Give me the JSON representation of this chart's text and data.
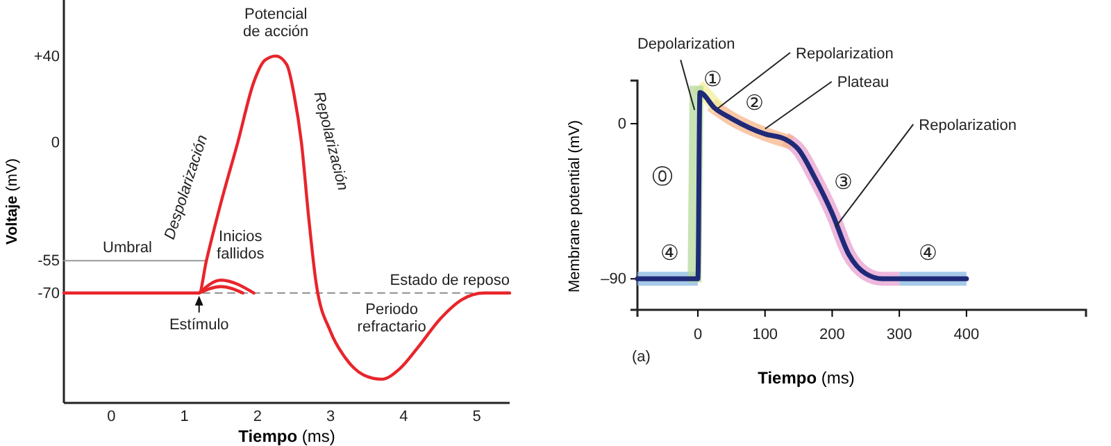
{
  "chart_data": [
    {
      "type": "line",
      "xlabel": "Tiempo (ms)",
      "ylabel": "Voltaje (mV)",
      "xlim": [
        -0.65,
        5.45
      ],
      "ylim": [
        -121,
        66
      ],
      "xticks": [
        0,
        1,
        2,
        3,
        4,
        5
      ],
      "yticks": [
        {
          "value": 40,
          "label": "+40"
        },
        0,
        -55,
        -70
      ],
      "series": [
        {
          "color": "#e8252b",
          "x": [
            -0.65,
            1.2,
            1.3,
            1.5,
            1.73,
            1.95,
            2.1,
            2.25,
            2.4,
            2.5,
            2.6,
            2.7,
            2.8,
            3.0,
            3.2,
            3.45,
            3.7,
            3.95,
            4.2,
            4.5,
            4.8,
            5.1,
            5.45
          ],
          "values": [
            -70,
            -70,
            -55,
            -28,
            0,
            28,
            38,
            40,
            36,
            22,
            0,
            -35,
            -65,
            -88,
            -100,
            -108,
            -110,
            -105,
            -95,
            -82,
            -73,
            -70,
            -70
          ]
        },
        {
          "color": "#e8252b",
          "x": [
            1.2,
            1.5,
            1.95
          ],
          "values": [
            -70,
            -64,
            -70
          ]
        },
        {
          "color": "#e8252b",
          "x": [
            1.2,
            1.5,
            1.8
          ],
          "values": [
            -70,
            -67,
            -70
          ]
        },
        {
          "name": "Umbral",
          "color": "#999999",
          "x": [
            -0.65,
            1.3
          ],
          "values": [
            -55,
            -55
          ]
        },
        {
          "name": "Estado de reposo",
          "color": "#8c8c8c",
          "line_style": "dashed",
          "x": [
            1.25,
            5.45
          ],
          "values": [
            -70,
            -70
          ]
        }
      ],
      "annotations": [
        {
          "text": "Potencial de acción",
          "x": 2.25,
          "y": 40
        },
        {
          "text": "Despolarización",
          "x": 1.5,
          "y": -28
        },
        {
          "text": "Repolarización",
          "x": 2.6,
          "y": 0
        },
        {
          "text": "Inicios fallidos",
          "x": 1.5,
          "y": -64
        },
        {
          "text": "Estímulo",
          "x": 1.2,
          "y": -70
        },
        {
          "text": "Periodo refractario",
          "x": 3.0,
          "y": -88
        }
      ]
    },
    {
      "type": "line",
      "xlabel": "Tiempo (ms)",
      "ylabel": "Membrane potential (mV)",
      "xlim": [
        -90,
        578
      ],
      "ylim": [
        -108,
        25
      ],
      "xticks": [
        0,
        100,
        200,
        300,
        400
      ],
      "yticks": [
        0,
        {
          "value": -90,
          "label": "–90"
        }
      ],
      "series": [
        {
          "color": "#1f2a78",
          "x": [
            -90,
            0,
            3,
            25,
            50,
            100,
            130,
            150,
            175,
            200,
            225,
            250,
            275,
            400
          ],
          "values": [
            -90,
            -90,
            18,
            9,
            3,
            -6,
            -9,
            -15,
            -32,
            -52,
            -76,
            -87,
            -90,
            -90
          ]
        },
        {
          "color": "#b5d99c",
          "x": [
            -5,
            -2
          ],
          "values": [
            -92,
            22
          ]
        },
        {
          "color": "#f3ee9a",
          "x": [
            0,
            30
          ],
          "values": [
            22,
            9
          ]
        },
        {
          "color": "#f7b58a",
          "x": [
            20,
            50,
            100,
            140
          ],
          "values": [
            11,
            3,
            -6,
            -11
          ]
        },
        {
          "color": "#e8a0d0",
          "x": [
            130,
            150,
            175,
            200,
            225,
            250,
            275,
            300
          ],
          "values": [
            -9,
            -15,
            -32,
            -52,
            -76,
            -87,
            -90,
            -90
          ]
        },
        {
          "color": "#8ab8e0",
          "x": [
            -90,
            0
          ],
          "values": [
            -90,
            -90
          ]
        },
        {
          "color": "#8ab8e0",
          "x": [
            300,
            400
          ],
          "values": [
            -90,
            -90
          ]
        }
      ],
      "annotations": [
        {
          "text": "Depolarization",
          "x": -5,
          "y": 8
        },
        "①",
        {
          "text": "Repolarization",
          "x": 30,
          "y": 9
        },
        "②",
        {
          "text": "Plateau",
          "x": 100,
          "y": -3
        },
        "③",
        {
          "text": "Repolarization",
          "x": 205,
          "y": -60
        },
        "⓪",
        "④",
        "④",
        "(a)"
      ]
    }
  ]
}
